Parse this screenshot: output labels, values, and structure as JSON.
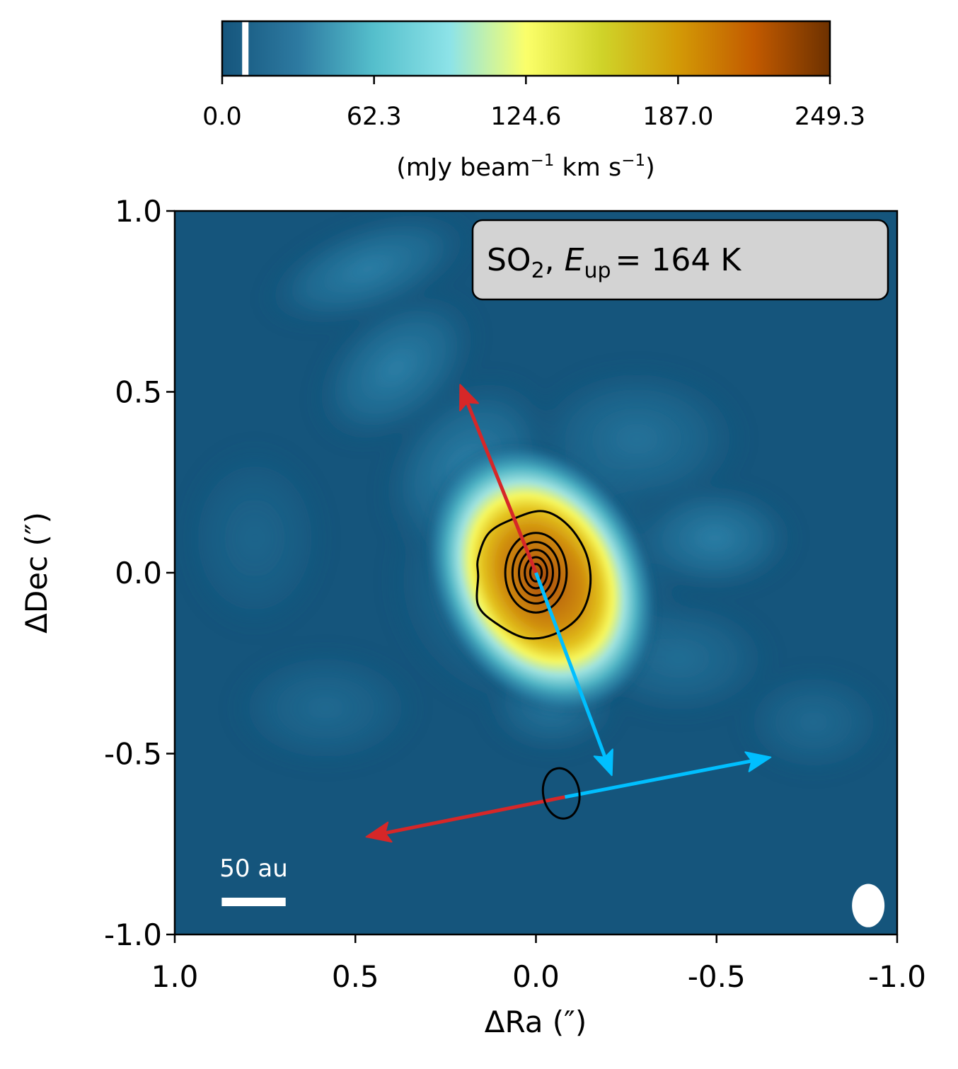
{
  "chart_data": {
    "type": "heatmap",
    "title": "",
    "label_box": {
      "species": "SO",
      "species_subscript": "2",
      "energy_symbol": "E",
      "energy_subscript": "up",
      "energy_value": "= 164 K",
      "background": "#d3d3d3"
    },
    "xlabel": "ΔRa (″)",
    "ylabel": "ΔDec (″)",
    "xlim": [
      1.0,
      -1.0
    ],
    "ylim": [
      -1.0,
      1.0
    ],
    "xticks": [
      1.0,
      0.5,
      0.0,
      -0.5,
      -1.0
    ],
    "xtick_labels": [
      "1.0",
      "0.5",
      "0.0",
      "-0.5",
      "-1.0"
    ],
    "yticks": [
      1.0,
      0.5,
      0.0,
      -0.5,
      -1.0
    ],
    "ytick_labels": [
      "1.0",
      "0.5",
      "0.0",
      "-0.5",
      "-1.0"
    ],
    "colorbar": {
      "min": 0.0,
      "max": 249.3,
      "ticks": [
        0.0,
        62.3,
        124.6,
        187.0,
        249.3
      ],
      "tick_labels": [
        "0.0",
        "62.3",
        "124.6",
        "187.0",
        "249.3"
      ],
      "label_prefix": "(mJy beam",
      "label_sup1": "−1",
      "label_mid": " km s",
      "label_sup2": "−1",
      "label_suffix": ")",
      "marker_value": 9.5,
      "colors": [
        "#15557c",
        "#2d7aa1",
        "#55bfcc",
        "#8de3e8",
        "#fbff6a",
        "#cfd329",
        "#d39a06",
        "#c25a00",
        "#6d3100"
      ]
    },
    "background_color": "#15557c",
    "emission_peak": {
      "x": 0.0,
      "y": 0.0,
      "peak_value": 249.3
    },
    "contours": {
      "center": [
        0.0,
        0.0
      ],
      "color": "#000000",
      "levels": [
        {
          "points": [
            [
              0.16,
              0.04
            ],
            [
              0.13,
              0.11
            ],
            [
              0.06,
              0.15
            ],
            [
              -0.02,
              0.17
            ],
            [
              -0.09,
              0.13
            ],
            [
              -0.14,
              0.05
            ],
            [
              -0.15,
              -0.04
            ],
            [
              -0.12,
              -0.12
            ],
            [
              -0.05,
              -0.17
            ],
            [
              0.03,
              -0.18
            ],
            [
              0.11,
              -0.14
            ],
            [
              0.16,
              -0.09
            ],
            [
              0.16,
              -0.01
            ]
          ]
        },
        {
          "rx": 0.085,
          "ry": 0.11
        },
        {
          "rx": 0.065,
          "ry": 0.085
        },
        {
          "rx": 0.047,
          "ry": 0.063
        },
        {
          "rx": 0.031,
          "ry": 0.043
        },
        {
          "rx": 0.016,
          "ry": 0.024
        }
      ]
    },
    "outflow_arrows": [
      {
        "name": "outflow-red",
        "from": [
          0.0,
          0.0
        ],
        "to": [
          0.21,
          0.52
        ],
        "color": "#d62728"
      },
      {
        "name": "outflow-blue",
        "from": [
          0.0,
          0.0
        ],
        "to": [
          -0.21,
          -0.56
        ],
        "color": "#00bfff"
      }
    ],
    "disk_arrows": [
      {
        "name": "disk-blue",
        "from": [
          -0.08,
          -0.62
        ],
        "to": [
          -0.65,
          -0.51
        ],
        "color": "#00bfff"
      },
      {
        "name": "disk-red",
        "from": [
          -0.08,
          -0.62
        ],
        "to": [
          0.47,
          -0.73
        ],
        "color": "#d62728"
      }
    ],
    "source_ellipse": {
      "center": [
        -0.07,
        -0.61
      ],
      "rx": 0.05,
      "ry": 0.07,
      "angle_deg": -10,
      "color": "#000000"
    },
    "scale_bar": {
      "label": "50 au",
      "length_arcsec": 0.177,
      "start": [
        0.87,
        -0.91
      ],
      "color": "#ffffff"
    },
    "beam": {
      "center": [
        -0.92,
        -0.92
      ],
      "major_arcsec": 0.12,
      "minor_arcsec": 0.09,
      "color": "#ffffff"
    }
  }
}
